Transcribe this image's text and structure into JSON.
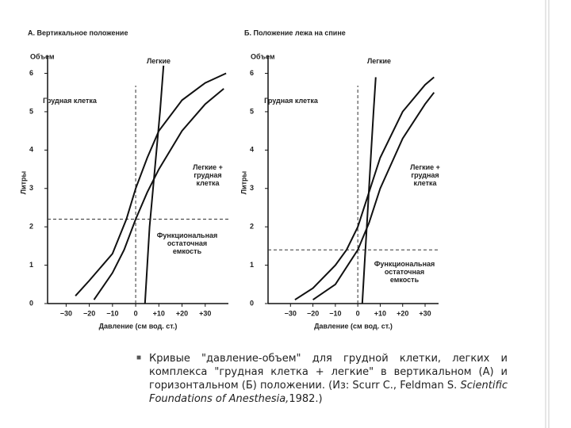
{
  "chart_data": [
    {
      "type": "line",
      "title": "А. Вертикальное положение",
      "y_label_top": "Объем",
      "y_label": "Литры",
      "x_label": "Давление (см вод. ст.)",
      "xlim": [
        -38,
        40
      ],
      "ylim": [
        0,
        6.3
      ],
      "xticks": [
        {
          "value": -30,
          "label": "−30"
        },
        {
          "value": -20,
          "label": "−20"
        },
        {
          "value": -10,
          "label": "−10"
        },
        0,
        {
          "value": 10,
          "label": "+10"
        },
        {
          "value": 20,
          "label": "+20"
        },
        {
          "value": 30,
          "label": "+30"
        }
      ],
      "yticks": [
        0,
        1,
        2,
        3,
        4,
        5,
        6
      ],
      "series": [
        {
          "name": "Легкие",
          "color": "#111111",
          "x": [
            4,
            5,
            6,
            7.5,
            9,
            10.5,
            12
          ],
          "values": [
            0,
            1,
            2,
            3,
            4,
            5,
            6.2
          ]
        },
        {
          "name": "Грудная клетка",
          "color": "#111111",
          "x": [
            -26,
            -20,
            -10,
            -4,
            0,
            5,
            10,
            20,
            30,
            39
          ],
          "values": [
            0.2,
            0.6,
            1.3,
            2.2,
            3,
            3.8,
            4.5,
            5.3,
            5.75,
            6.0
          ]
        },
        {
          "name": "Легкие + грудная клетка",
          "color": "#111111",
          "x": [
            -18,
            -10,
            -5,
            0,
            5,
            10,
            20,
            30,
            38
          ],
          "values": [
            0.1,
            0.8,
            1.4,
            2.2,
            2.9,
            3.5,
            4.5,
            5.2,
            5.6
          ]
        }
      ],
      "frc_line": 2.2,
      "annotation": "Функциональная остаточная емкость"
    },
    {
      "type": "line",
      "title": "Б. Положение лежа на спине",
      "y_label_top": "Объем",
      "y_label": "Литры",
      "x_label": "Давление (см вод. ст.)",
      "xlim": [
        -40,
        36
      ],
      "ylim": [
        0,
        6.3
      ],
      "xticks": [
        {
          "value": -30,
          "label": "−30"
        },
        {
          "value": -20,
          "label": "−20"
        },
        {
          "value": -10,
          "label": "−10"
        },
        0,
        {
          "value": 10,
          "label": "+10"
        },
        {
          "value": 20,
          "label": "+20"
        },
        {
          "value": 30,
          "label": "+30"
        }
      ],
      "yticks": [
        0,
        1,
        2,
        3,
        4,
        5,
        6
      ],
      "series": [
        {
          "name": "Легкие",
          "color": "#111111",
          "x": [
            2,
            3,
            4,
            5,
            6,
            7,
            8
          ],
          "values": [
            0,
            1,
            2,
            3,
            4,
            5,
            5.9
          ]
        },
        {
          "name": "Грудная клетка",
          "color": "#111111",
          "x": [
            -28,
            -20,
            -10,
            -5,
            0,
            5,
            10,
            20,
            30,
            34
          ],
          "values": [
            0.1,
            0.4,
            1,
            1.4,
            2,
            2.9,
            3.8,
            5.0,
            5.7,
            5.9
          ]
        },
        {
          "name": "Легкие + грудная клетка",
          "color": "#111111",
          "x": [
            -20,
            -10,
            0,
            5,
            10,
            20,
            30,
            34
          ],
          "values": [
            0.1,
            0.5,
            1.4,
            2.1,
            3,
            4.3,
            5.2,
            5.5
          ]
        }
      ],
      "frc_line": 1.4,
      "annotation": "Функциональная остаточная емкость"
    }
  ],
  "caption": {
    "text": "Кривые \"давление-объем\" для грудной клетки, легких и комплекса \"грудная клетка + легкие\" в вертикальном (А) и горизонтальном (Б) положении. (Из: Scurr C., Feldman S.",
    "source_italic": "Scientific Foundations of Anesthesia,",
    "year": "1982.)"
  }
}
